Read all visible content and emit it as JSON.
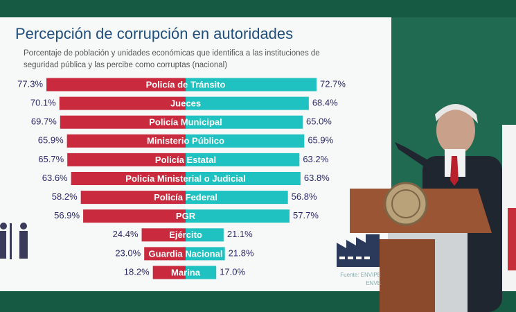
{
  "chart_data": {
    "type": "bar",
    "title": "Percepción de corrupción en autoridades",
    "subtitle": [
      "Porcentaje de población y unidades económicas que identifica a las instituciones de",
      "seguridad pública y las percibe como corruptas (nacional)"
    ],
    "categories": [
      "Policía de Tránsito",
      "Jueces",
      "Policía Municipal",
      "Ministerio Público",
      "Policía Estatal",
      "Policía Ministerial o Judicial",
      "Policía Federal",
      "PGR",
      "Ejército",
      "Guardia Nacional",
      "Marina"
    ],
    "series": [
      {
        "color": "#c92a3e",
        "values": [
          77.3,
          70.1,
          69.7,
          65.9,
          65.7,
          63.6,
          58.2,
          56.9,
          24.4,
          23.0,
          18.2
        ],
        "value_labels": [
          "77.3%",
          "70.1%",
          "69.7%",
          "65.9%",
          "65.7%",
          "63.6%",
          "58.2%",
          "56.9%",
          "24.4%",
          "23.0%",
          "18.2%"
        ]
      },
      {
        "color": "#1fc2c0",
        "values": [
          72.7,
          68.4,
          65.0,
          65.9,
          63.2,
          63.8,
          56.8,
          57.7,
          21.1,
          21.8,
          17.0
        ],
        "value_labels": [
          "72.7%",
          "68.4%",
          "65.0%",
          "65.9%",
          "63.2%",
          "63.8%",
          "56.8%",
          "57.7%",
          "21.1%",
          "21.8%",
          "17.0%"
        ]
      }
    ],
    "source": [
      "Fuente: ENVIPE",
      "ENVE"
    ]
  }
}
